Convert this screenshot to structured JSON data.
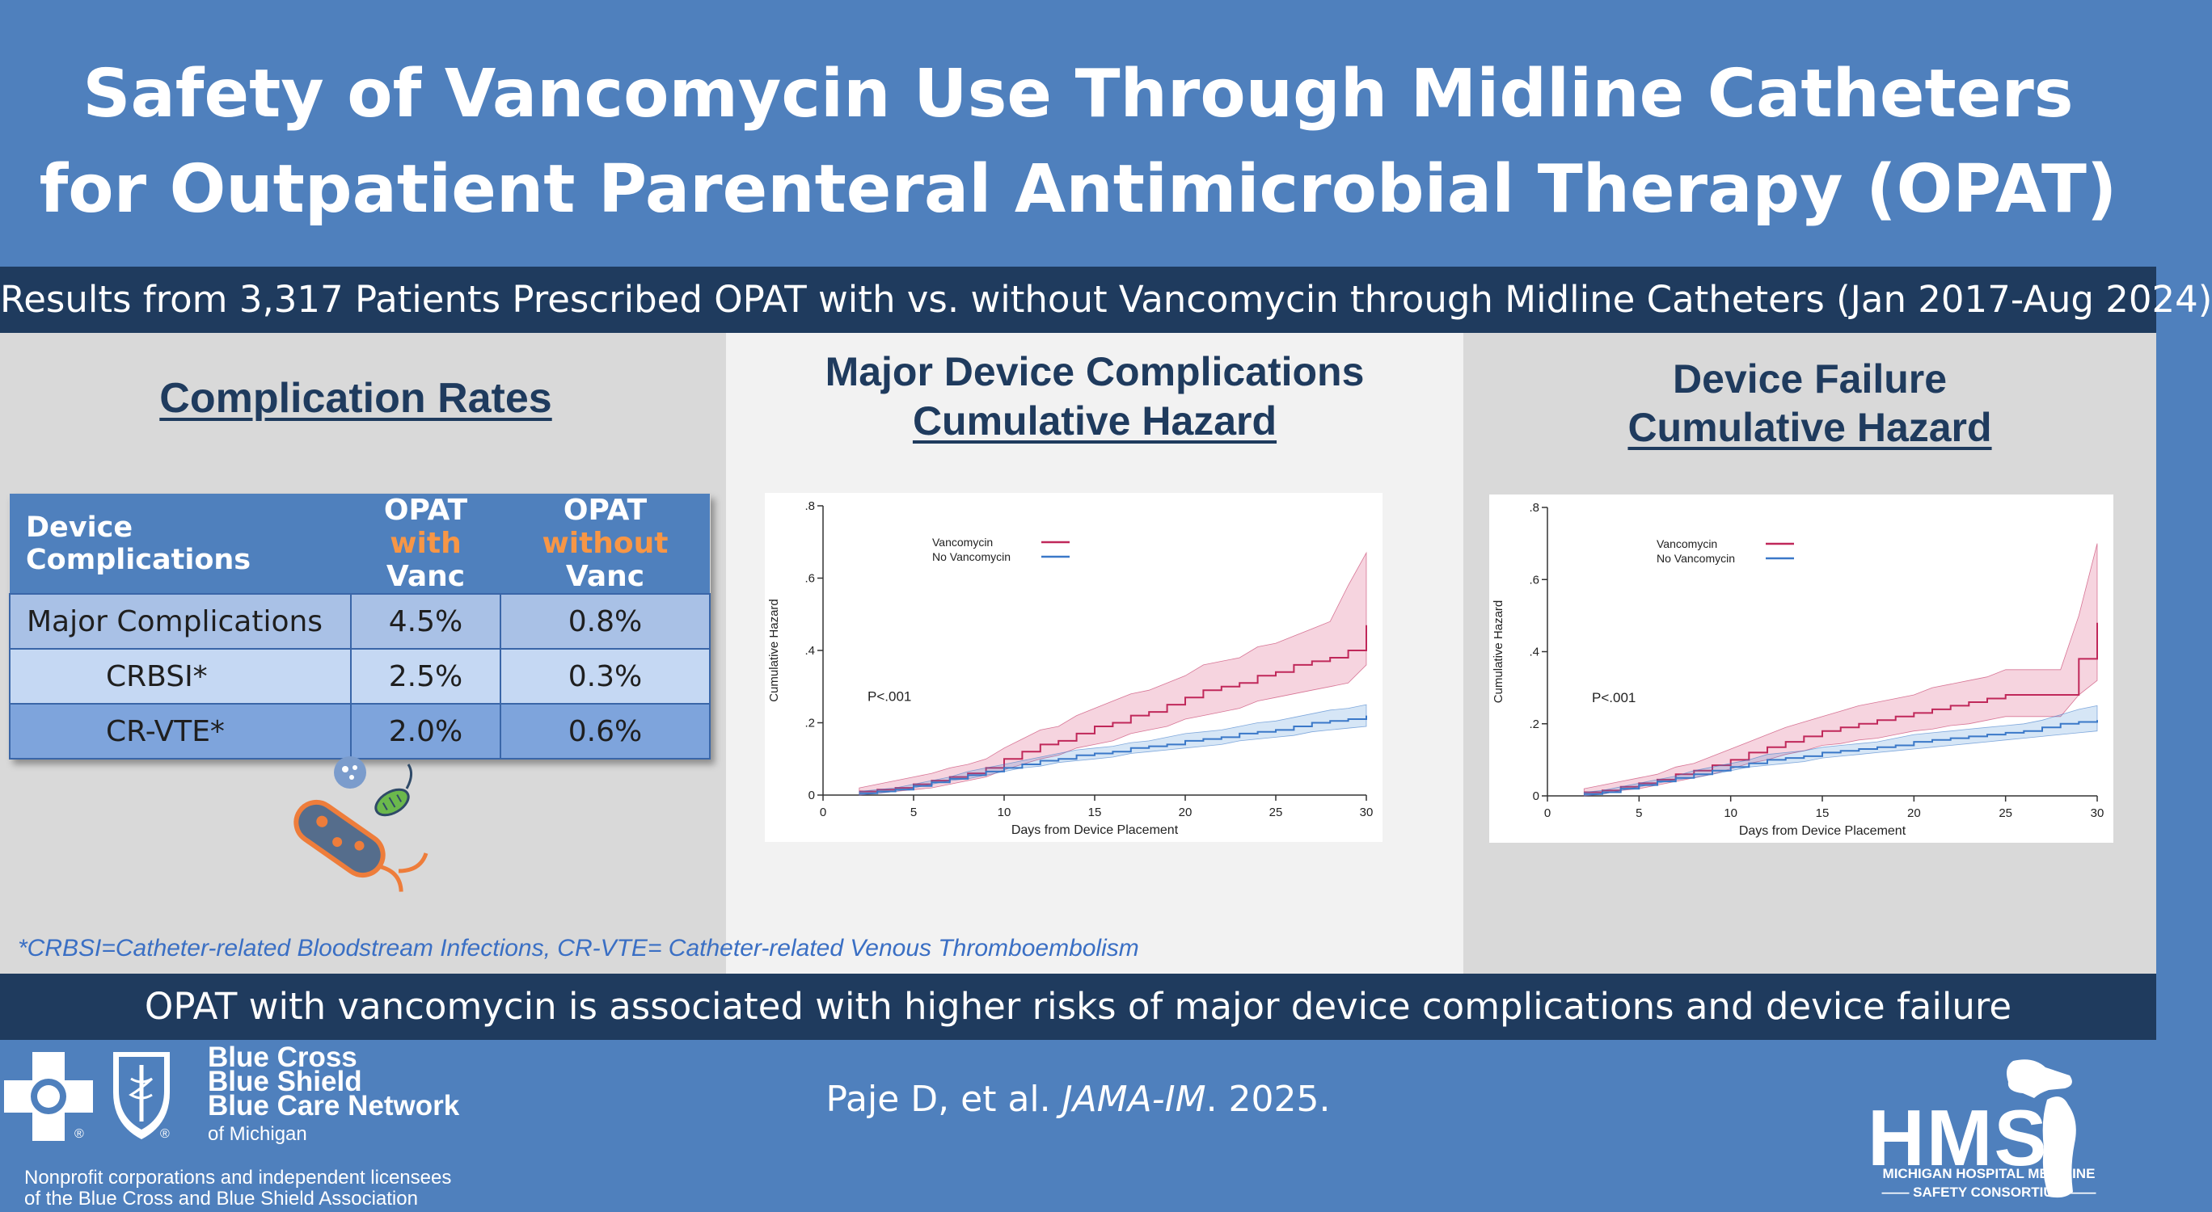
{
  "header": {
    "title_line1": "Safety of Vancomycin Use Through Midline Catheters",
    "title_line2": "for Outpatient Parenteral Antimicrobial Therapy (OPAT)",
    "subtitle": "Results from 3,317 Patients Prescribed OPAT with vs. without Vancomycin through Midline Catheters (Jan 2017-Aug 2024)"
  },
  "left_panel": {
    "heading": "Complication Rates",
    "table": {
      "col1": "Device Complications",
      "col2_l1": "OPAT",
      "col2_hl": "with",
      "col2_rest": " Vanc",
      "col3_l1": "OPAT",
      "col3_hl": "without",
      "col3_rest": " Vanc",
      "rows": [
        {
          "label": "Major Complications",
          "with": "4.5%",
          "without": "0.8%"
        },
        {
          "label": "CRBSI*",
          "with": "2.5%",
          "without": "0.3%"
        },
        {
          "label": "CR-VTE*",
          "with": "2.0%",
          "without": "0.6%"
        }
      ]
    },
    "footnote": "*CRBSI=Catheter-related Bloodstream Infections, CR-VTE= Catheter-related Venous Thromboembolism"
  },
  "mid_panel": {
    "heading_l1": "Major Device Complications",
    "heading_l2": "Cumulative Hazard"
  },
  "right_panel": {
    "heading_l1": "Device Failure",
    "heading_l2": "Cumulative Hazard"
  },
  "chart_data": [
    {
      "type": "line",
      "xlabel": "Days from Device Placement",
      "ylabel": "Cumulative Hazard",
      "xlim": [
        0,
        30
      ],
      "ylim": [
        0,
        0.8
      ],
      "xticks": [
        "0",
        "5",
        "10",
        "15",
        "20",
        "25",
        "30"
      ],
      "yticks": [
        "0",
        ".2",
        ".4",
        ".6",
        ".8"
      ],
      "annotation": "P<.001",
      "legend_placement": "top-left",
      "series": [
        {
          "name": "Vancomycin",
          "color": "#c0285a",
          "x": [
            2,
            3,
            4,
            5,
            6,
            7,
            8,
            9,
            10,
            11,
            12,
            13,
            14,
            15,
            16,
            17,
            18,
            19,
            20,
            21,
            22,
            23,
            24,
            25,
            26,
            27,
            28,
            29,
            30
          ],
          "y": [
            0.01,
            0.015,
            0.02,
            0.03,
            0.04,
            0.05,
            0.06,
            0.075,
            0.1,
            0.12,
            0.14,
            0.15,
            0.17,
            0.19,
            0.2,
            0.22,
            0.23,
            0.25,
            0.27,
            0.29,
            0.3,
            0.31,
            0.33,
            0.34,
            0.36,
            0.37,
            0.38,
            0.4,
            0.47
          ],
          "lower": [
            0.0,
            0.005,
            0.01,
            0.015,
            0.02,
            0.03,
            0.04,
            0.05,
            0.07,
            0.085,
            0.1,
            0.11,
            0.13,
            0.14,
            0.15,
            0.17,
            0.18,
            0.19,
            0.21,
            0.22,
            0.23,
            0.24,
            0.26,
            0.27,
            0.28,
            0.29,
            0.3,
            0.31,
            0.36
          ],
          "upper": [
            0.02,
            0.03,
            0.04,
            0.05,
            0.06,
            0.075,
            0.085,
            0.1,
            0.13,
            0.155,
            0.18,
            0.19,
            0.22,
            0.24,
            0.26,
            0.28,
            0.29,
            0.31,
            0.33,
            0.36,
            0.37,
            0.38,
            0.41,
            0.42,
            0.44,
            0.46,
            0.48,
            0.58,
            0.67
          ]
        },
        {
          "name": "No Vancomycin",
          "color": "#3a78c8",
          "x": [
            2,
            3,
            4,
            5,
            6,
            7,
            8,
            9,
            10,
            11,
            12,
            13,
            14,
            15,
            16,
            17,
            18,
            19,
            20,
            21,
            22,
            23,
            24,
            25,
            26,
            27,
            28,
            29,
            30
          ],
          "y": [
            0.005,
            0.01,
            0.015,
            0.025,
            0.035,
            0.045,
            0.055,
            0.065,
            0.075,
            0.085,
            0.095,
            0.1,
            0.11,
            0.115,
            0.12,
            0.13,
            0.135,
            0.14,
            0.15,
            0.155,
            0.16,
            0.17,
            0.175,
            0.18,
            0.19,
            0.2,
            0.205,
            0.21,
            0.22
          ],
          "lower": [
            0.0,
            0.005,
            0.01,
            0.02,
            0.03,
            0.04,
            0.045,
            0.055,
            0.065,
            0.075,
            0.08,
            0.09,
            0.095,
            0.1,
            0.105,
            0.115,
            0.12,
            0.125,
            0.13,
            0.135,
            0.14,
            0.15,
            0.155,
            0.16,
            0.165,
            0.175,
            0.18,
            0.185,
            0.19
          ],
          "upper": [
            0.01,
            0.015,
            0.02,
            0.03,
            0.04,
            0.05,
            0.065,
            0.075,
            0.085,
            0.095,
            0.105,
            0.115,
            0.125,
            0.13,
            0.135,
            0.145,
            0.15,
            0.16,
            0.17,
            0.175,
            0.18,
            0.19,
            0.2,
            0.205,
            0.215,
            0.225,
            0.235,
            0.24,
            0.25
          ]
        }
      ]
    },
    {
      "type": "line",
      "xlabel": "Days from Device Placement",
      "ylabel": "Cumulative Hazard",
      "xlim": [
        0,
        30
      ],
      "ylim": [
        0,
        0.8
      ],
      "xticks": [
        "0",
        "5",
        "10",
        "15",
        "20",
        "25",
        "30"
      ],
      "yticks": [
        "0",
        ".2",
        ".4",
        ".6",
        ".8"
      ],
      "annotation": "P<.001",
      "legend_placement": "top-left",
      "series": [
        {
          "name": "Vancomycin",
          "color": "#c0285a",
          "x": [
            2,
            3,
            4,
            5,
            6,
            7,
            8,
            9,
            10,
            11,
            12,
            13,
            14,
            15,
            16,
            17,
            18,
            19,
            20,
            21,
            22,
            23,
            24,
            25,
            26,
            27,
            28,
            29,
            30
          ],
          "y": [
            0.01,
            0.015,
            0.025,
            0.035,
            0.045,
            0.06,
            0.07,
            0.085,
            0.1,
            0.12,
            0.135,
            0.15,
            0.165,
            0.18,
            0.19,
            0.2,
            0.21,
            0.22,
            0.23,
            0.24,
            0.25,
            0.26,
            0.27,
            0.28,
            0.28,
            0.28,
            0.28,
            0.38,
            0.48
          ],
          "lower": [
            0.0,
            0.005,
            0.015,
            0.02,
            0.03,
            0.04,
            0.05,
            0.06,
            0.075,
            0.09,
            0.1,
            0.115,
            0.125,
            0.14,
            0.145,
            0.155,
            0.16,
            0.17,
            0.18,
            0.185,
            0.195,
            0.2,
            0.21,
            0.22,
            0.22,
            0.22,
            0.22,
            0.28,
            0.32
          ],
          "upper": [
            0.02,
            0.03,
            0.04,
            0.05,
            0.06,
            0.08,
            0.09,
            0.11,
            0.13,
            0.15,
            0.17,
            0.19,
            0.205,
            0.22,
            0.235,
            0.25,
            0.26,
            0.27,
            0.28,
            0.3,
            0.31,
            0.32,
            0.33,
            0.35,
            0.35,
            0.35,
            0.35,
            0.5,
            0.7
          ]
        },
        {
          "name": "No Vancomycin",
          "color": "#3a78c8",
          "x": [
            2,
            3,
            4,
            5,
            6,
            7,
            8,
            9,
            10,
            11,
            12,
            13,
            14,
            15,
            16,
            17,
            18,
            19,
            20,
            21,
            22,
            23,
            24,
            25,
            26,
            27,
            28,
            29,
            30
          ],
          "y": [
            0.005,
            0.01,
            0.02,
            0.03,
            0.04,
            0.05,
            0.06,
            0.07,
            0.08,
            0.09,
            0.1,
            0.105,
            0.11,
            0.12,
            0.125,
            0.13,
            0.135,
            0.14,
            0.15,
            0.155,
            0.16,
            0.165,
            0.17,
            0.175,
            0.18,
            0.19,
            0.2,
            0.205,
            0.21
          ],
          "lower": [
            0.0,
            0.005,
            0.015,
            0.025,
            0.035,
            0.045,
            0.05,
            0.06,
            0.07,
            0.08,
            0.085,
            0.09,
            0.095,
            0.105,
            0.11,
            0.115,
            0.12,
            0.125,
            0.13,
            0.135,
            0.14,
            0.145,
            0.15,
            0.155,
            0.16,
            0.165,
            0.17,
            0.175,
            0.18
          ],
          "upper": [
            0.01,
            0.015,
            0.025,
            0.035,
            0.045,
            0.055,
            0.07,
            0.08,
            0.09,
            0.1,
            0.115,
            0.12,
            0.125,
            0.135,
            0.14,
            0.145,
            0.15,
            0.16,
            0.17,
            0.175,
            0.18,
            0.185,
            0.19,
            0.195,
            0.2,
            0.21,
            0.225,
            0.24,
            0.25
          ]
        }
      ]
    }
  ],
  "conclusion": "OPAT with vancomycin is associated with higher risks of major device complications and device failure",
  "citation": {
    "authors": "Paje D, et al. ",
    "journal": "JAMA-IM",
    "year": ". 2025."
  },
  "bcbs": {
    "name_l1": "Blue Cross",
    "name_l2": "Blue Shield",
    "name_l3": "Blue Care Network",
    "name_l4": "of Michigan",
    "note_l1": "Nonprofit corporations and independent licensees",
    "note_l2": "of the Blue Cross and Blue Shield Association"
  },
  "hms": {
    "abbr": "HMS",
    "sub_l1": "MICHIGAN HOSPITAL MEDICINE",
    "sub_l2": "SAFETY CONSORTIUM"
  },
  "colors": {
    "brand_blue": "#4f80bd",
    "navy": "#1f3b5e",
    "accent_orange": "#f79646"
  }
}
